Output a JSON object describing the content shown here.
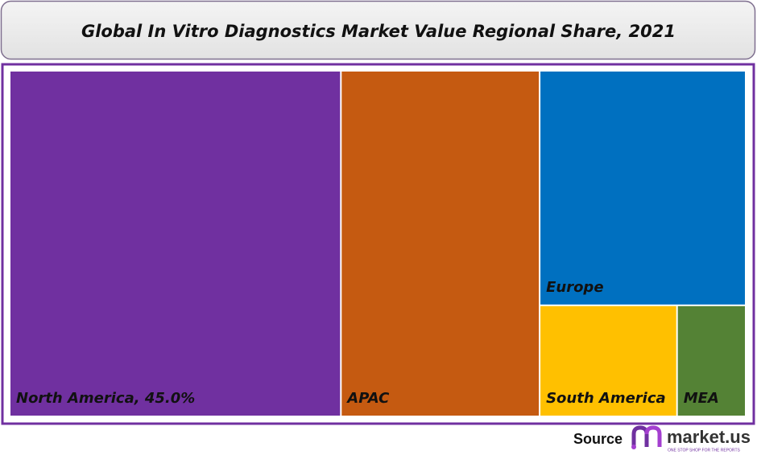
{
  "chart_data": {
    "type": "treemap",
    "title": "Global In Vitro Diagnostics Market Value Regional Share, 2021",
    "categories": [
      "North America",
      "APAC",
      "Europe",
      "South America",
      "MEA"
    ],
    "values": [
      45,
      27,
      19,
      6,
      3
    ],
    "value_labels": [
      "45.0%",
      null,
      null,
      null,
      null
    ],
    "colors": [
      "#7030a0",
      "#c55a11",
      "#0070c0",
      "#ffc000",
      "#548235"
    ]
  },
  "footer": {
    "source": "Source",
    "brand": "market.us",
    "tagline": "ONE STOP SHOP FOR THE REPORTS"
  }
}
